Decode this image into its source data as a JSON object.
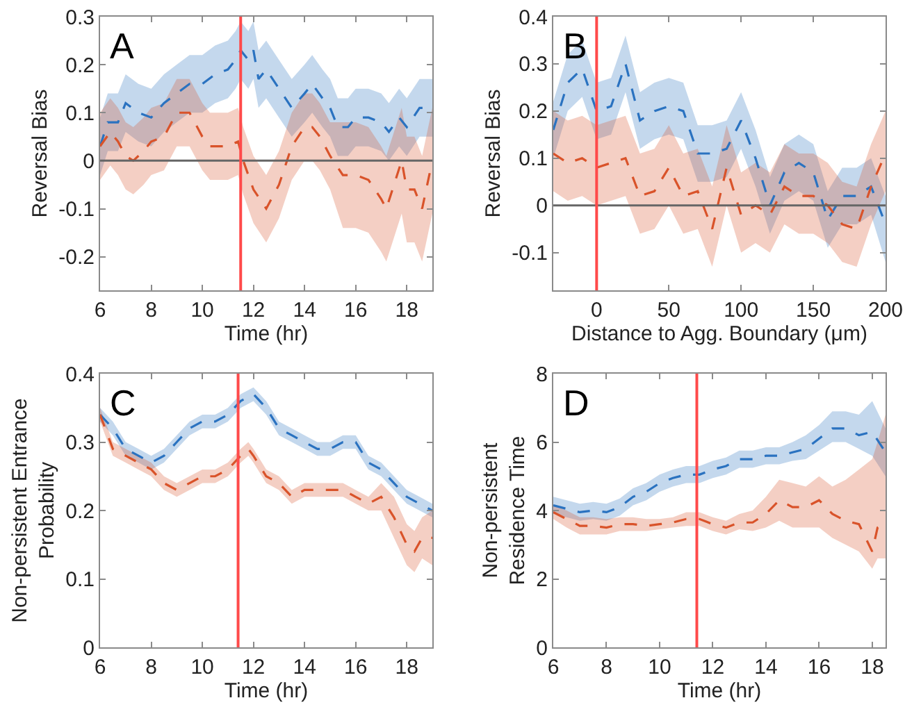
{
  "chart_data": [
    {
      "type": "line",
      "line_style": "dashed",
      "annotations": [
        "A"
      ],
      "xlabel": "Time (hr)",
      "ylabel": "Reversal Bias",
      "xlim": [
        6,
        19
      ],
      "xticks": [
        6,
        8,
        10,
        12,
        14,
        16,
        18
      ],
      "ylim": [
        -0.27,
        0.3
      ],
      "yticks": [
        -0.2,
        -0.1,
        0,
        0.1,
        0.2,
        0.3
      ],
      "ref_lines": [
        {
          "axis": "y",
          "value": 0,
          "color": "#666666"
        },
        {
          "axis": "x",
          "value": 11.5,
          "color": "#ff4a4a"
        }
      ],
      "series": [
        {
          "color": "#2a72c0",
          "x": [
            6,
            6.3,
            6.7,
            7,
            7.5,
            8,
            8.5,
            9,
            9.5,
            10,
            10.5,
            11,
            11.3,
            11.5,
            11.8,
            12,
            12.2,
            12.5,
            13,
            13.5,
            14,
            14.3,
            14.7,
            15,
            15.3,
            15.7,
            16,
            16.5,
            17,
            17.3,
            17.7,
            18,
            18.5,
            19
          ],
          "values": [
            0.03,
            0.08,
            0.08,
            0.12,
            0.1,
            0.09,
            0.12,
            0.14,
            0.16,
            0.16,
            0.18,
            0.19,
            0.21,
            0.23,
            0.21,
            0.23,
            0.17,
            0.19,
            0.15,
            0.11,
            0.14,
            0.16,
            0.13,
            0.11,
            0.07,
            0.07,
            0.09,
            0.09,
            0.08,
            0.06,
            0.09,
            0.07,
            0.11,
            0.11
          ],
          "lower": [
            -0.03,
            0.02,
            0.02,
            0.06,
            0.04,
            0.03,
            0.06,
            0.08,
            0.1,
            0.1,
            0.12,
            0.13,
            0.15,
            0.17,
            0.15,
            0.17,
            0.11,
            0.13,
            0.09,
            0.05,
            0.08,
            0.1,
            0.07,
            0.05,
            0.01,
            0.01,
            0.03,
            0.03,
            0.02,
            0.0,
            0.03,
            0.01,
            0.05,
            0.05
          ],
          "upper": [
            0.09,
            0.14,
            0.14,
            0.18,
            0.16,
            0.15,
            0.18,
            0.2,
            0.22,
            0.22,
            0.24,
            0.25,
            0.27,
            0.29,
            0.27,
            0.29,
            0.23,
            0.25,
            0.21,
            0.17,
            0.2,
            0.22,
            0.19,
            0.17,
            0.13,
            0.13,
            0.15,
            0.15,
            0.14,
            0.12,
            0.15,
            0.13,
            0.17,
            0.17
          ]
        },
        {
          "color": "#d9532a",
          "x": [
            6,
            6.4,
            6.7,
            7,
            7.3,
            7.7,
            8,
            8.5,
            9,
            9.5,
            10,
            10.3,
            11,
            11.4,
            11.6,
            12,
            12.5,
            13,
            13.5,
            14,
            14.3,
            14.6,
            15,
            15.5,
            16,
            16.5,
            17,
            17.2,
            17.5,
            17.8,
            18,
            18.3,
            18.6,
            19
          ],
          "values": [
            0.03,
            0.06,
            0.04,
            0.01,
            0.0,
            0.02,
            0.04,
            0.05,
            0.1,
            0.1,
            0.05,
            0.03,
            0.03,
            0.04,
            0.0,
            -0.06,
            -0.1,
            -0.05,
            0.03,
            0.07,
            0.07,
            0.05,
            0.01,
            -0.03,
            -0.03,
            -0.04,
            -0.08,
            -0.1,
            -0.05,
            0.0,
            -0.06,
            -0.06,
            -0.1,
            0.0
          ],
          "lower": [
            -0.04,
            -0.01,
            -0.03,
            -0.06,
            -0.07,
            -0.05,
            -0.03,
            -0.02,
            0.03,
            0.03,
            -0.02,
            -0.04,
            -0.04,
            -0.03,
            -0.07,
            -0.13,
            -0.17,
            -0.12,
            -0.04,
            0.0,
            0.0,
            -0.02,
            -0.06,
            -0.14,
            -0.14,
            -0.15,
            -0.19,
            -0.21,
            -0.16,
            -0.11,
            -0.17,
            -0.17,
            -0.21,
            -0.11
          ],
          "upper": [
            0.1,
            0.13,
            0.11,
            0.08,
            0.07,
            0.09,
            0.11,
            0.12,
            0.17,
            0.17,
            0.12,
            0.1,
            0.1,
            0.11,
            0.07,
            0.01,
            -0.03,
            0.02,
            0.1,
            0.14,
            0.14,
            0.12,
            0.08,
            0.08,
            0.08,
            0.07,
            0.03,
            0.01,
            0.06,
            0.11,
            0.05,
            0.05,
            0.01,
            0.11
          ]
        }
      ]
    },
    {
      "type": "line",
      "line_style": "dashed",
      "annotations": [
        "B"
      ],
      "xlabel": "Distance to Agg. Boundary (μm)",
      "ylabel": "Reversal Bias",
      "xlim": [
        -30,
        200
      ],
      "xticks": [
        0,
        50,
        100,
        150,
        200
      ],
      "ylim": [
        -0.18,
        0.4
      ],
      "yticks": [
        -0.1,
        0,
        0.1,
        0.2,
        0.3,
        0.4
      ],
      "ref_lines": [
        {
          "axis": "y",
          "value": 0,
          "color": "#666666"
        },
        {
          "axis": "x",
          "value": 0,
          "color": "#ff4a4a"
        }
      ],
      "series": [
        {
          "color": "#2a72c0",
          "x": [
            -30,
            -20,
            -10,
            0,
            10,
            20,
            30,
            40,
            50,
            60,
            70,
            80,
            90,
            100,
            110,
            120,
            130,
            140,
            150,
            160,
            170,
            180,
            190,
            200
          ],
          "values": [
            0.16,
            0.26,
            0.29,
            0.2,
            0.21,
            0.3,
            0.18,
            0.2,
            0.21,
            0.2,
            0.11,
            0.11,
            0.12,
            0.18,
            0.1,
            0.0,
            0.07,
            0.09,
            0.07,
            -0.03,
            0.02,
            0.02,
            0.04,
            -0.04
          ],
          "lower": [
            0.1,
            0.2,
            0.23,
            0.14,
            0.15,
            0.24,
            0.12,
            0.14,
            0.15,
            0.14,
            0.05,
            0.05,
            0.06,
            0.12,
            0.04,
            -0.06,
            0.01,
            0.03,
            0.01,
            -0.09,
            -0.04,
            -0.04,
            -0.02,
            -0.12
          ],
          "upper": [
            0.22,
            0.32,
            0.35,
            0.26,
            0.27,
            0.36,
            0.24,
            0.26,
            0.27,
            0.26,
            0.17,
            0.17,
            0.18,
            0.24,
            0.16,
            0.06,
            0.13,
            0.15,
            0.13,
            0.03,
            0.08,
            0.08,
            0.1,
            0.02
          ]
        },
        {
          "color": "#d9532a",
          "x": [
            -30,
            -20,
            -10,
            0,
            10,
            20,
            30,
            40,
            50,
            60,
            70,
            80,
            90,
            100,
            110,
            120,
            130,
            140,
            150,
            160,
            170,
            180,
            190,
            200
          ],
          "values": [
            0.11,
            0.09,
            0.1,
            0.08,
            0.09,
            0.1,
            0.02,
            0.03,
            0.08,
            0.02,
            0.03,
            -0.05,
            0.08,
            -0.02,
            0.0,
            -0.02,
            0.04,
            0.02,
            0.02,
            0.0,
            -0.04,
            -0.05,
            0.04,
            0.11
          ],
          "lower": [
            0.03,
            0.01,
            0.02,
            0.0,
            0.01,
            0.02,
            -0.06,
            -0.05,
            0.0,
            -0.06,
            -0.05,
            -0.13,
            0.0,
            -0.1,
            -0.08,
            -0.1,
            -0.04,
            -0.06,
            -0.06,
            -0.08,
            -0.12,
            -0.13,
            -0.04,
            0.03
          ],
          "upper": [
            0.2,
            0.18,
            0.19,
            0.17,
            0.18,
            0.19,
            0.11,
            0.12,
            0.17,
            0.11,
            0.12,
            0.04,
            0.17,
            0.07,
            0.09,
            0.07,
            0.13,
            0.11,
            0.11,
            0.09,
            0.05,
            0.04,
            0.13,
            0.2
          ]
        }
      ]
    },
    {
      "type": "line",
      "line_style": "dashed",
      "annotations": [
        "C"
      ],
      "xlabel": "Time (hr)",
      "ylabel": "Non-persistent Entrance\nProbability",
      "xlim": [
        6,
        19
      ],
      "xticks": [
        6,
        8,
        10,
        12,
        14,
        16,
        18
      ],
      "ylim": [
        0,
        0.4
      ],
      "yticks": [
        0,
        0.1,
        0.2,
        0.3,
        0.4
      ],
      "ref_lines": [
        {
          "axis": "x",
          "value": 11.4,
          "color": "#ff4a4a"
        }
      ],
      "series": [
        {
          "color": "#2a72c0",
          "x": [
            6,
            6.5,
            7,
            7.5,
            8,
            8.5,
            9,
            9.5,
            10,
            10.5,
            11,
            11.5,
            12,
            12.5,
            13,
            13.5,
            14,
            14.5,
            15,
            15.5,
            16,
            16.5,
            17,
            17.5,
            18,
            18.5,
            19
          ],
          "values": [
            0.34,
            0.32,
            0.29,
            0.28,
            0.27,
            0.28,
            0.3,
            0.32,
            0.33,
            0.33,
            0.34,
            0.36,
            0.37,
            0.35,
            0.32,
            0.31,
            0.3,
            0.29,
            0.29,
            0.3,
            0.3,
            0.27,
            0.26,
            0.24,
            0.22,
            0.21,
            0.2
          ],
          "lower": [
            0.33,
            0.31,
            0.28,
            0.27,
            0.26,
            0.27,
            0.29,
            0.31,
            0.32,
            0.32,
            0.33,
            0.35,
            0.36,
            0.34,
            0.31,
            0.3,
            0.29,
            0.28,
            0.28,
            0.29,
            0.29,
            0.26,
            0.25,
            0.23,
            0.21,
            0.2,
            0.19
          ],
          "upper": [
            0.35,
            0.33,
            0.3,
            0.29,
            0.28,
            0.29,
            0.31,
            0.33,
            0.34,
            0.34,
            0.35,
            0.37,
            0.38,
            0.36,
            0.33,
            0.32,
            0.31,
            0.3,
            0.3,
            0.31,
            0.31,
            0.28,
            0.27,
            0.25,
            0.23,
            0.22,
            0.21
          ]
        },
        {
          "color": "#d9532a",
          "x": [
            6,
            6.5,
            7,
            7.5,
            8,
            8.5,
            9,
            9.5,
            10,
            10.5,
            11,
            11.5,
            11.8,
            12,
            12.5,
            13,
            13.5,
            14,
            14.5,
            15,
            15.5,
            16,
            16.5,
            17,
            17.5,
            18,
            18.3,
            18.6,
            19
          ],
          "values": [
            0.34,
            0.29,
            0.28,
            0.27,
            0.26,
            0.24,
            0.23,
            0.24,
            0.25,
            0.25,
            0.26,
            0.28,
            0.29,
            0.28,
            0.25,
            0.24,
            0.22,
            0.23,
            0.23,
            0.23,
            0.23,
            0.22,
            0.21,
            0.22,
            0.19,
            0.15,
            0.14,
            0.16,
            0.16
          ],
          "lower": [
            0.33,
            0.28,
            0.27,
            0.26,
            0.25,
            0.23,
            0.22,
            0.23,
            0.24,
            0.24,
            0.25,
            0.27,
            0.28,
            0.27,
            0.24,
            0.23,
            0.21,
            0.22,
            0.22,
            0.22,
            0.22,
            0.21,
            0.2,
            0.2,
            0.16,
            0.12,
            0.11,
            0.13,
            0.12
          ],
          "upper": [
            0.35,
            0.3,
            0.29,
            0.28,
            0.27,
            0.25,
            0.24,
            0.25,
            0.26,
            0.26,
            0.27,
            0.29,
            0.3,
            0.29,
            0.26,
            0.25,
            0.23,
            0.24,
            0.24,
            0.24,
            0.24,
            0.23,
            0.22,
            0.24,
            0.22,
            0.18,
            0.17,
            0.19,
            0.2
          ]
        }
      ]
    },
    {
      "type": "line",
      "line_style": "dashed",
      "annotations": [
        "D"
      ],
      "xlabel": "Time (hr)",
      "ylabel": "Non-persistent\nResidence Time",
      "xlim": [
        6,
        18.5
      ],
      "xticks": [
        6,
        8,
        10,
        12,
        14,
        16,
        18
      ],
      "ylim": [
        0,
        8
      ],
      "yticks": [
        0,
        2,
        4,
        6,
        8
      ],
      "ref_lines": [
        {
          "axis": "x",
          "value": 11.4,
          "color": "#ff4a4a"
        }
      ],
      "series": [
        {
          "color": "#2a72c0",
          "x": [
            6,
            6.5,
            7,
            7.5,
            8,
            8.5,
            9,
            9.5,
            10,
            10.5,
            11,
            11.5,
            12,
            12.5,
            13,
            13.5,
            14,
            14.5,
            15,
            15.5,
            16,
            16.5,
            17,
            17.5,
            18,
            18.5
          ],
          "values": [
            4.15,
            4.05,
            3.95,
            4.0,
            3.95,
            4.1,
            4.4,
            4.55,
            4.8,
            4.95,
            5.05,
            5.05,
            5.2,
            5.3,
            5.5,
            5.5,
            5.6,
            5.6,
            5.7,
            5.8,
            6.1,
            6.4,
            6.4,
            6.2,
            6.3,
            5.7
          ],
          "lower": [
            3.9,
            3.8,
            3.7,
            3.75,
            3.7,
            3.85,
            4.15,
            4.3,
            4.55,
            4.7,
            4.8,
            4.8,
            4.95,
            5.05,
            5.25,
            5.25,
            5.35,
            5.35,
            5.45,
            5.5,
            5.75,
            6.0,
            6.0,
            5.8,
            5.6,
            5.0
          ],
          "upper": [
            4.4,
            4.3,
            4.2,
            4.25,
            4.2,
            4.35,
            4.65,
            4.8,
            5.05,
            5.2,
            5.3,
            5.3,
            5.45,
            5.55,
            5.75,
            5.75,
            5.85,
            5.85,
            6.0,
            6.2,
            6.5,
            6.9,
            6.9,
            6.8,
            7.2,
            6.4
          ]
        },
        {
          "color": "#d9532a",
          "x": [
            6,
            6.5,
            7,
            7.5,
            8,
            8.5,
            9,
            9.5,
            10,
            10.5,
            11,
            11.5,
            12,
            12.5,
            13,
            13.5,
            14,
            14.5,
            15,
            15.5,
            16,
            16.5,
            17,
            17.5,
            18,
            18.2,
            18.5
          ],
          "values": [
            3.95,
            3.75,
            3.55,
            3.55,
            3.5,
            3.6,
            3.6,
            3.55,
            3.6,
            3.65,
            3.75,
            3.75,
            3.6,
            3.5,
            3.65,
            3.65,
            3.9,
            4.3,
            4.1,
            4.1,
            4.3,
            3.9,
            3.7,
            3.6,
            2.8,
            3.5,
            3.7
          ],
          "lower": [
            3.75,
            3.5,
            3.3,
            3.3,
            3.3,
            3.4,
            3.4,
            3.4,
            3.45,
            3.5,
            3.55,
            3.55,
            3.4,
            3.3,
            3.45,
            3.4,
            3.5,
            3.7,
            3.5,
            3.5,
            3.5,
            3.2,
            3.0,
            2.8,
            2.3,
            2.6,
            2.6
          ],
          "upper": [
            4.15,
            4.0,
            3.8,
            3.8,
            3.75,
            3.8,
            3.8,
            3.75,
            3.75,
            3.8,
            3.95,
            3.95,
            3.8,
            3.7,
            3.9,
            4.0,
            4.4,
            4.9,
            4.8,
            4.7,
            5.0,
            4.7,
            4.9,
            5.2,
            5.5,
            6.0,
            6.8
          ]
        }
      ]
    }
  ]
}
